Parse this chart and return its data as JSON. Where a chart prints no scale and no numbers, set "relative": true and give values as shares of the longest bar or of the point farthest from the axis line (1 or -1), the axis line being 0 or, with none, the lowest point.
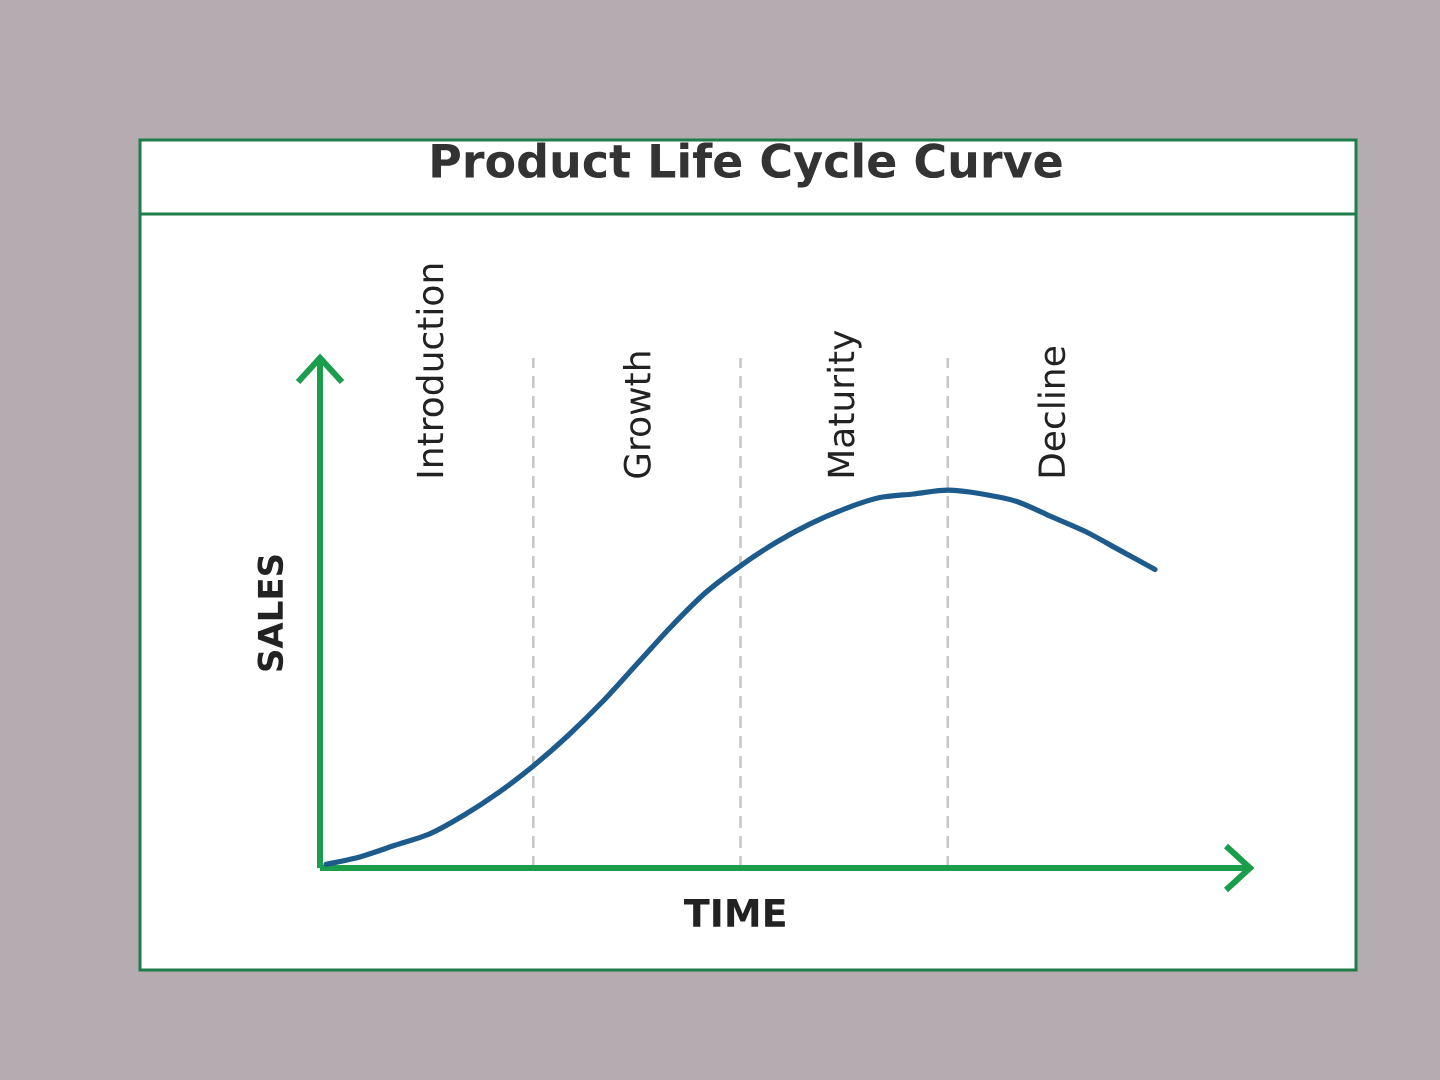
{
  "chart_data": {
    "type": "line",
    "title": "Product Life Cycle Curve",
    "xlabel": "TIME",
    "ylabel": "SALES",
    "relative": true,
    "marker": "none",
    "line_style": "solid",
    "grid": "x",
    "categories": [
      null,
      null,
      null,
      "Introduction",
      null,
      null,
      null,
      null,
      null,
      "Growth",
      null,
      null,
      null,
      null,
      null,
      "Maturity",
      null,
      null,
      null,
      null,
      null,
      "Decline",
      null,
      null,
      null
    ],
    "series": [
      {
        "color": "#1d5b8c",
        "values": [
          0.01,
          0.03,
          0.06,
          0.09,
          0.14,
          0.2,
          0.27,
          0.35,
          0.44,
          0.54,
          0.64,
          0.73,
          0.8,
          0.86,
          0.91,
          0.95,
          0.98,
          0.99,
          1.0,
          0.99,
          0.97,
          0.93,
          0.89,
          0.84,
          0.79
        ]
      }
    ]
  }
}
